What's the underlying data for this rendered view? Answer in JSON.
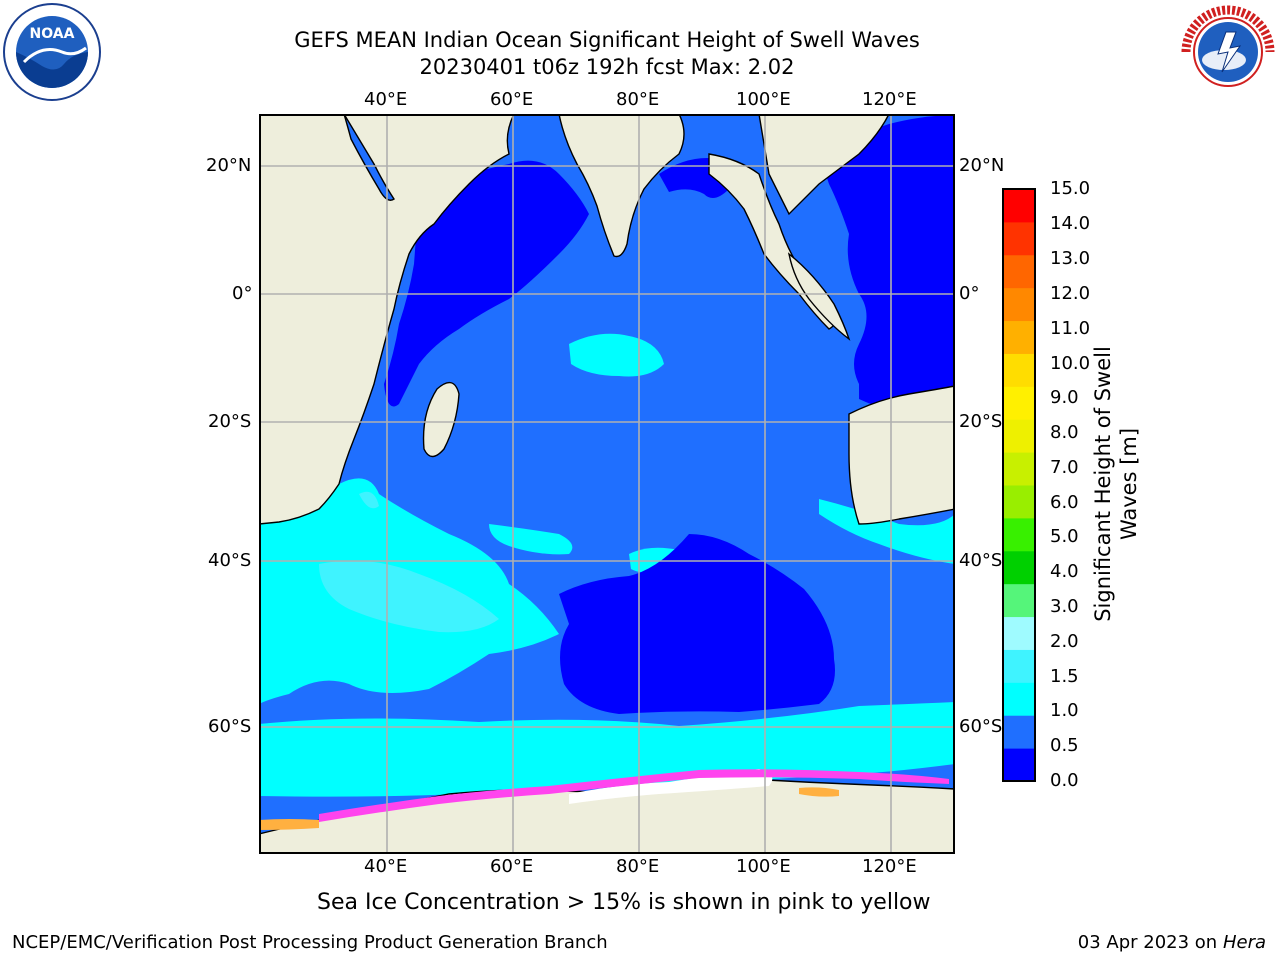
{
  "title": {
    "line1": "GEFS MEAN Indian Ocean Significant Height of Swell Waves",
    "line2": "20230401 t06z 192h fcst   Max: 2.02"
  },
  "axes": {
    "top_lon_labels": [
      "40°E",
      "60°E",
      "80°E",
      "100°E",
      "120°E"
    ],
    "bottom_lon_labels": [
      "40°E",
      "60°E",
      "80°E",
      "100°E",
      "120°E"
    ],
    "left_lat_labels": [
      "20°N",
      "0°",
      "20°S",
      "40°S",
      "60°S"
    ],
    "right_lat_labels": [
      "20°N",
      "0°",
      "20°S",
      "40°S",
      "60°S"
    ]
  },
  "colorbar": {
    "label_line1": "Significant Height of Swell",
    "label_line2": "Waves [m]",
    "ticks": [
      "15.0",
      "14.0",
      "13.0",
      "12.0",
      "11.0",
      "10.0",
      "9.0",
      "8.0",
      "7.0",
      "6.0",
      "5.0",
      "4.0",
      "3.0",
      "2.0",
      "1.5",
      "1.0",
      "0.5",
      "0.0"
    ],
    "colors": [
      "#0000ff",
      "#1f6fff",
      "#00ffff",
      "#3ff3ff",
      "#9ffbff",
      "#55f57a",
      "#00d000",
      "#38f000",
      "#99ee00",
      "#c8f000",
      "#eef000",
      "#fff000",
      "#ffdd00",
      "#ffb000",
      "#ff8800",
      "#ff6600",
      "#ff3300",
      "#ff0000"
    ]
  },
  "note": "Sea Ice Concentration > 15% is shown in pink to yellow",
  "footer": {
    "left": "NCEP/EMC/Verification Post Processing Product Generation Branch",
    "right_date": "03 Apr 2023 on ",
    "right_host": "Hera"
  },
  "logos": {
    "left": "NOAA",
    "right": "NATIONAL WEATHER SERVICE"
  },
  "map_colors": {
    "land": "#eeeedc",
    "ocean_0_05": "#0000ff",
    "ocean_05_1": "#1f6fff",
    "ocean_1_15": "#00ffff",
    "ocean_15_2": "#3ff3ff",
    "ice_white": "#ffffff",
    "ice_pink": "#ff44ee",
    "ice_orange": "#ffb040",
    "grid": "#b0b0b0"
  }
}
